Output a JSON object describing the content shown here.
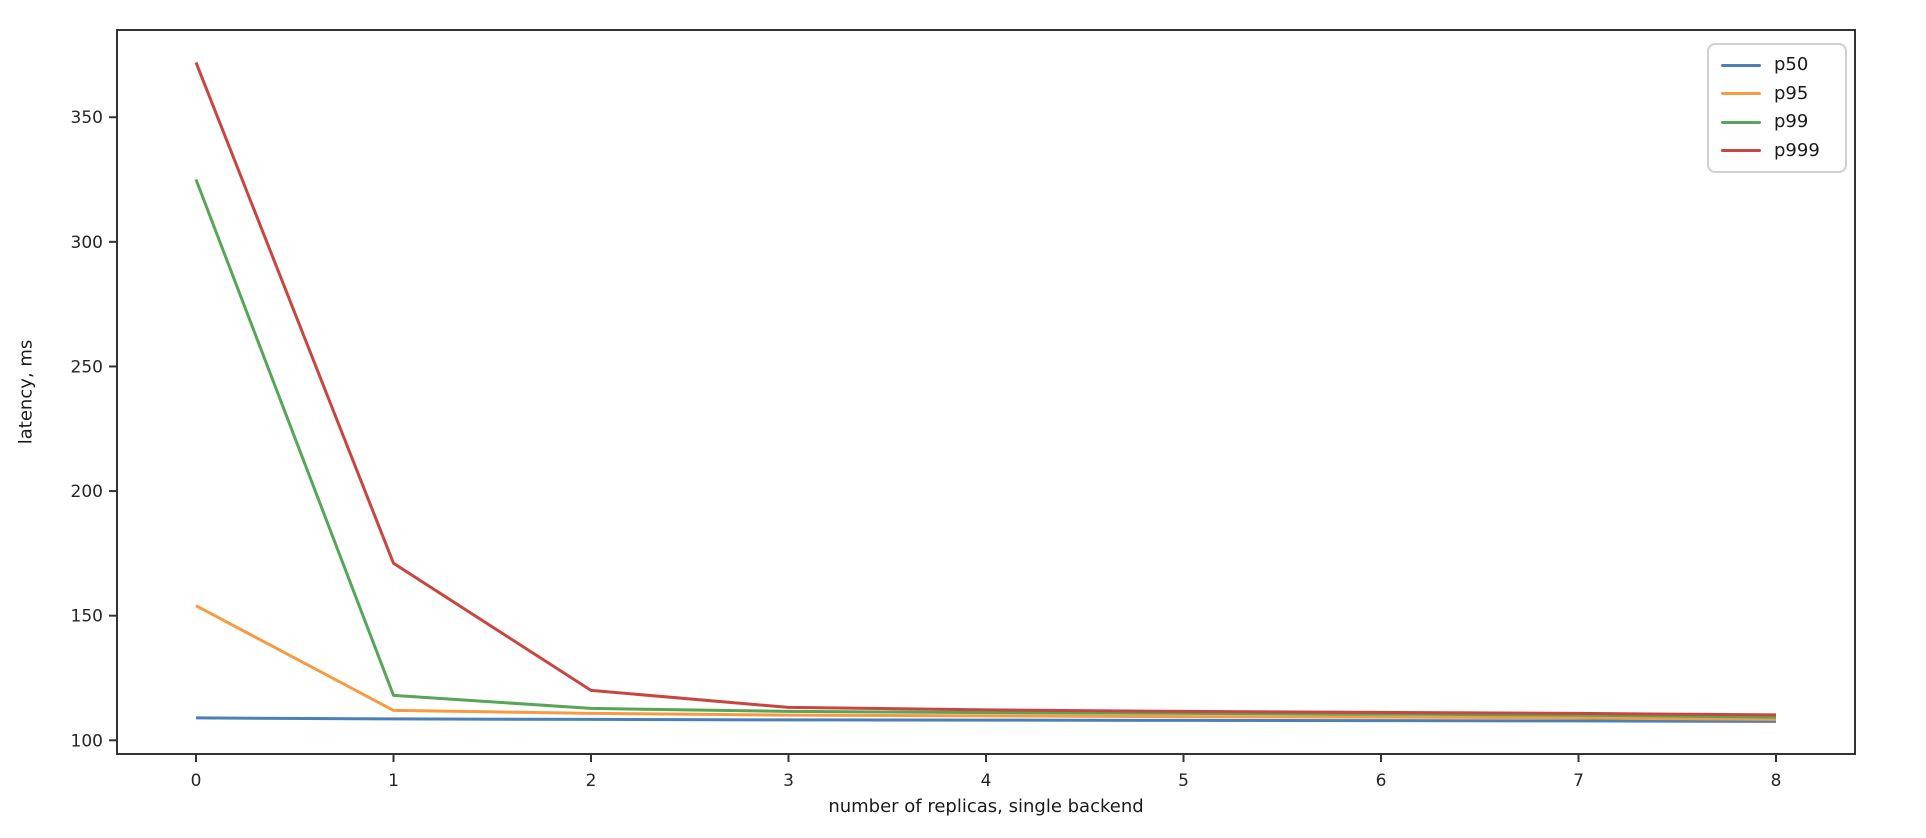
{
  "figure": {
    "background": "#ffffff",
    "spine_color": "#333333",
    "tick_color": "#333333",
    "text_color": "#262626"
  },
  "chart_data": {
    "type": "line",
    "title": "",
    "xlabel": "number of replicas, single backend",
    "ylabel": "latency, ms",
    "x": [
      0,
      1,
      2,
      3,
      4,
      5,
      6,
      7,
      8
    ],
    "series": [
      {
        "name": "p50",
        "color": "#4a80b8",
        "values": [
          109,
          108.6,
          108.4,
          108.2,
          108.1,
          108.0,
          107.9,
          107.8,
          107.6
        ]
      },
      {
        "name": "p95",
        "color": "#f89a42",
        "values": [
          154,
          112,
          110.8,
          110.1,
          109.8,
          109.5,
          109.3,
          109.0,
          108.4
        ]
      },
      {
        "name": "p99",
        "color": "#57a657",
        "values": [
          325,
          118,
          112.8,
          111.6,
          111.1,
          110.8,
          110.5,
          110.1,
          109.3
        ]
      },
      {
        "name": "p999",
        "color": "#c94540",
        "values": [
          372,
          171,
          120,
          113.2,
          112.2,
          111.6,
          111.2,
          110.8,
          110.2
        ]
      }
    ],
    "xticks": [
      "0",
      "1",
      "2",
      "3",
      "4",
      "5",
      "6",
      "7",
      "8"
    ],
    "xtick_values": [
      0,
      1,
      2,
      3,
      4,
      5,
      6,
      7,
      8
    ],
    "yticks": [
      "100",
      "150",
      "200",
      "250",
      "300",
      "350"
    ],
    "ytick_values": [
      100,
      150,
      200,
      250,
      300,
      350
    ],
    "xlim": [
      -0.4,
      8.4
    ],
    "ylim": [
      94.5,
      385
    ],
    "grid": false,
    "legend_position": "upper right",
    "line_width": 3
  }
}
